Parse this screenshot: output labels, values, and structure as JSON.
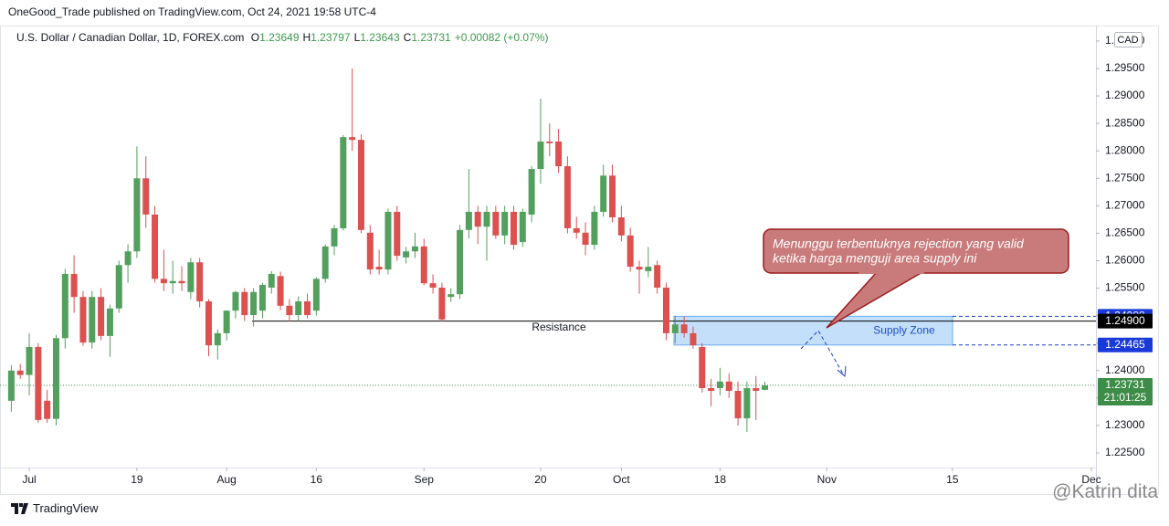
{
  "header": {
    "published": "OneGood_Trade published on TradingView.com, Oct 24, 2021 19:58 UTC-4",
    "symbol": "U.S. Dollar / Canadian Dollar, 1D, FOREX.com",
    "ohlc": [
      {
        "label": "O",
        "value": "1.23649"
      },
      {
        "label": "H",
        "value": "1.23797"
      },
      {
        "label": "L",
        "value": "1.23643"
      },
      {
        "label": "C",
        "value": "1.23731"
      }
    ],
    "change": "+0.00082 (+0.07%)"
  },
  "footer": {
    "brand": "TradingView",
    "watermark": "@Katrin dita"
  },
  "annotations": {
    "resistance": {
      "label": "Resistance",
      "value": {
        "value": 1.249,
        "label": "1.24900"
      }
    },
    "supply_zone": {
      "label": "Supply Zone",
      "top": 1.24988,
      "bottom": 1.24465
    },
    "note": [
      "Menunggu terbentuknya rejection yang valid",
      "ketika harga menguji area supply ini"
    ],
    "countdown": "21:01:25"
  },
  "chart_data": {
    "type": "candlestick",
    "currency": "CAD",
    "up_color": "#53a05e",
    "down_color": "#dc5050",
    "categories": [
      "2021-06-29",
      "2021-06-30",
      "2021-07-01",
      "2021-07-02",
      "2021-07-05",
      "2021-07-06",
      "2021-07-07",
      "2021-07-08",
      "2021-07-09",
      "2021-07-12",
      "2021-07-13",
      "2021-07-14",
      "2021-07-15",
      "2021-07-16",
      "2021-07-19",
      "2021-07-20",
      "2021-07-21",
      "2021-07-22",
      "2021-07-23",
      "2021-07-26",
      "2021-07-27",
      "2021-07-28",
      "2021-07-29",
      "2021-07-30",
      "2021-08-02",
      "2021-08-03",
      "2021-08-04",
      "2021-08-05",
      "2021-08-06",
      "2021-08-09",
      "2021-08-10",
      "2021-08-11",
      "2021-08-12",
      "2021-08-13",
      "2021-08-16",
      "2021-08-17",
      "2021-08-18",
      "2021-08-19",
      "2021-08-20",
      "2021-08-23",
      "2021-08-24",
      "2021-08-25",
      "2021-08-26",
      "2021-08-27",
      "2021-08-30",
      "2021-08-31",
      "2021-09-01",
      "2021-09-02",
      "2021-09-03",
      "2021-09-06",
      "2021-09-07",
      "2021-09-08",
      "2021-09-09",
      "2021-09-10",
      "2021-09-13",
      "2021-09-14",
      "2021-09-15",
      "2021-09-16",
      "2021-09-17",
      "2021-09-20",
      "2021-09-21",
      "2021-09-22",
      "2021-09-23",
      "2021-09-24",
      "2021-09-27",
      "2021-09-28",
      "2021-09-29",
      "2021-09-30",
      "2021-10-01",
      "2021-10-04",
      "2021-10-05",
      "2021-10-06",
      "2021-10-07",
      "2021-10-08",
      "2021-10-11",
      "2021-10-12",
      "2021-10-13",
      "2021-10-14",
      "2021-10-15",
      "2021-10-18",
      "2021-10-19",
      "2021-10-20",
      "2021-10-21",
      "2021-10-22",
      "2021-10-25"
    ],
    "open": [
      1.2345,
      1.24,
      1.2392,
      1.2443,
      1.2345,
      1.2312,
      1.2459,
      1.2576,
      1.2534,
      1.2451,
      1.2534,
      1.2463,
      1.2513,
      1.2592,
      1.2617,
      1.275,
      1.2684,
      1.2567,
      1.2559,
      1.2563,
      1.2543,
      1.2597,
      1.2526,
      1.2446,
      1.2468,
      1.2509,
      1.2543,
      1.2501,
      1.2509,
      1.2551,
      1.2572,
      1.2518,
      1.2501,
      1.2526,
      1.2509,
      1.2567,
      1.2626,
      1.2659,
      1.2825,
      1.282,
      1.2651,
      1.2589,
      1.2584,
      1.2689,
      1.2606,
      1.2617,
      1.2626,
      1.2559,
      1.2551,
      1.2534,
      1.2539,
      1.2656,
      1.2689,
      1.2662,
      1.2689,
      1.2646,
      1.2689,
      1.2634,
      1.2684,
      1.2767,
      1.2817,
      1.2817,
      1.2772,
      1.2659,
      1.2651,
      1.2629,
      1.2689,
      1.2755,
      1.2679,
      1.2646,
      1.2589,
      1.2581,
      1.2592,
      1.2551,
      1.2468,
      1.2484,
      1.2468,
      1.2443,
      1.2368,
      1.2368,
      1.238,
      1.2363,
      1.2313,
      1.2368,
      1.23649
    ],
    "high": [
      1.241,
      1.2412,
      1.2468,
      1.245,
      1.2365,
      1.2465,
      1.2585,
      1.261,
      1.2545,
      1.2545,
      1.255,
      1.252,
      1.26,
      1.263,
      1.2808,
      1.279,
      1.27,
      1.262,
      1.26,
      1.259,
      1.2605,
      1.2605,
      1.253,
      1.2475,
      1.251,
      1.2545,
      1.255,
      1.255,
      1.256,
      1.2581,
      1.258,
      1.253,
      1.2535,
      1.254,
      1.257,
      1.263,
      1.2665,
      1.2829,
      1.295,
      1.283,
      1.2665,
      1.262,
      1.2695,
      1.27,
      1.2625,
      1.2651,
      1.264,
      1.2575,
      1.256,
      1.255,
      1.2665,
      1.2767,
      1.27,
      1.27,
      1.27,
      1.27,
      1.27,
      1.2695,
      1.2772,
      1.2895,
      1.285,
      1.284,
      1.279,
      1.268,
      1.267,
      1.27,
      1.2775,
      1.2775,
      1.27,
      1.266,
      1.26,
      1.2625,
      1.26,
      1.256,
      1.25,
      1.2499,
      1.248,
      1.245,
      1.2385,
      1.2405,
      1.2395,
      1.238,
      1.238,
      1.239,
      1.23797
    ],
    "low": [
      1.2325,
      1.2385,
      1.2355,
      1.2305,
      1.2305,
      1.23,
      1.244,
      1.2505,
      1.2445,
      1.244,
      1.2455,
      1.2425,
      1.2505,
      1.256,
      1.2605,
      1.266,
      1.256,
      1.2545,
      1.254,
      1.2545,
      1.253,
      1.2515,
      1.2426,
      1.242,
      1.2455,
      1.2495,
      1.249,
      1.248,
      1.2495,
      1.254,
      1.251,
      1.2489,
      1.249,
      1.2495,
      1.25,
      1.256,
      1.261,
      1.2655,
      1.28,
      1.265,
      1.2575,
      1.2575,
      1.2575,
      1.26,
      1.2595,
      1.2605,
      1.2555,
      1.254,
      1.2489,
      1.2525,
      1.253,
      1.264,
      1.263,
      1.26,
      1.264,
      1.263,
      1.262,
      1.2625,
      1.267,
      1.274,
      1.279,
      1.276,
      1.265,
      1.264,
      1.261,
      1.262,
      1.268,
      1.267,
      1.2635,
      1.258,
      1.254,
      1.257,
      1.254,
      1.2455,
      1.245,
      1.246,
      1.244,
      1.236,
      1.2335,
      1.2355,
      1.235,
      1.23,
      1.2288,
      1.231,
      1.23643
    ],
    "close": [
      1.24,
      1.2392,
      1.2443,
      1.231,
      1.2312,
      1.2459,
      1.2576,
      1.2534,
      1.2451,
      1.2534,
      1.2463,
      1.2513,
      1.2592,
      1.2617,
      1.275,
      1.2684,
      1.2567,
      1.2559,
      1.2563,
      1.2559,
      1.2597,
      1.2526,
      1.2446,
      1.2468,
      1.2509,
      1.2543,
      1.2501,
      1.2543,
      1.2556,
      1.2576,
      1.2518,
      1.2501,
      1.2526,
      1.2501,
      1.2567,
      1.2626,
      1.2659,
      1.2825,
      1.282,
      1.2656,
      1.2584,
      1.2584,
      1.2689,
      1.2609,
      1.2617,
      1.2626,
      1.2559,
      1.2551,
      1.2493,
      1.2539,
      1.2656,
      1.2689,
      1.2662,
      1.2689,
      1.2646,
      1.2689,
      1.2629,
      1.2689,
      1.2767,
      1.2817,
      1.2814,
      1.2772,
      1.2659,
      1.2651,
      1.2629,
      1.2689,
      1.2755,
      1.2679,
      1.2646,
      1.2589,
      1.2584,
      1.2589,
      1.2551,
      1.2468,
      1.2484,
      1.2468,
      1.2446,
      1.2368,
      1.2363,
      1.238,
      1.2363,
      1.2313,
      1.2368,
      1.2363,
      1.23731
    ],
    "xlim": [
      -1.26,
      120.9
    ],
    "xticks": [
      {
        "value": 2,
        "label": "Jul"
      },
      {
        "value": 14,
        "label": "19"
      },
      {
        "value": 24,
        "label": "Aug"
      },
      {
        "value": 34,
        "label": "16"
      },
      {
        "value": 46,
        "label": "Sep"
      },
      {
        "value": 59,
        "label": "20"
      },
      {
        "value": 68,
        "label": "Oct"
      },
      {
        "value": 79,
        "label": "18"
      },
      {
        "value": 90.9,
        "label": "Nov"
      },
      {
        "value": 104.9,
        "label": "15"
      },
      {
        "value": 120.4,
        "label": "Dec"
      }
    ],
    "ylim": [
      1.22267,
      1.30248
    ],
    "yticks": [
      {
        "value": 1.225,
        "label": "1.22500"
      },
      {
        "value": 1.23,
        "label": "1.23000"
      },
      {
        "value": 1.235,
        "label": "1.23500"
      },
      {
        "value": 1.24,
        "label": "1.24000"
      },
      {
        "value": 1.245,
        "label": "1.24500"
      },
      {
        "value": 1.25,
        "label": "1.25000"
      },
      {
        "value": 1.255,
        "label": "1.25500"
      },
      {
        "value": 1.26,
        "label": "1.26000"
      },
      {
        "value": 1.265,
        "label": "1.26500"
      },
      {
        "value": 1.27,
        "label": "1.27000"
      },
      {
        "value": 1.275,
        "label": "1.27500"
      },
      {
        "value": 1.28,
        "label": "1.28000"
      },
      {
        "value": 1.285,
        "label": "1.28500"
      },
      {
        "value": 1.29,
        "label": "1.29000"
      },
      {
        "value": 1.295,
        "label": "1.29500"
      },
      {
        "value": 1.3,
        "label": "1.30000"
      }
    ]
  }
}
